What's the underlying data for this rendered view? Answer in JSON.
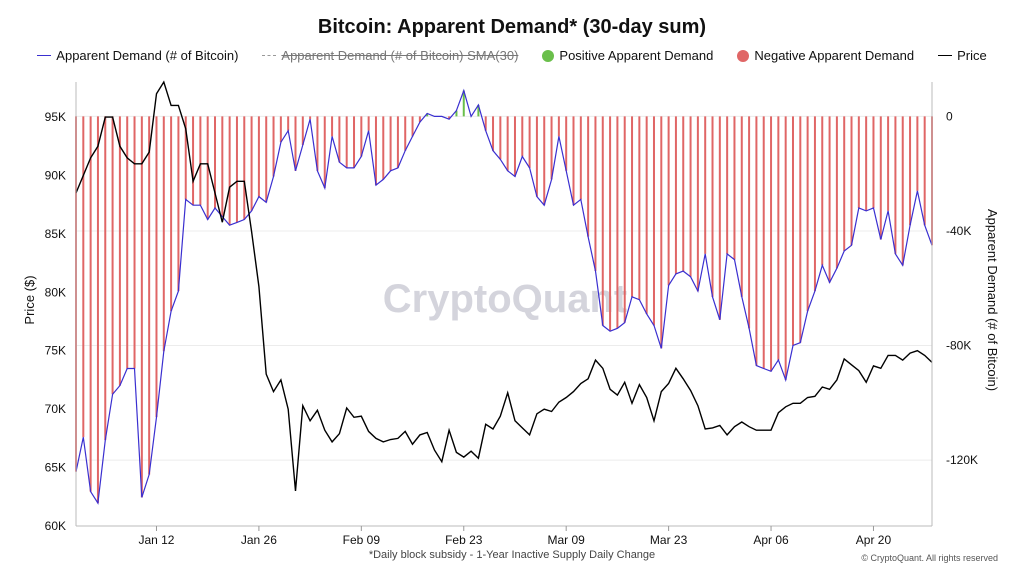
{
  "chart_data": {
    "type": "bar+line",
    "title": "Bitcoin: Apparent Demand* (30-day sum)",
    "x_ticks": [
      {
        "label": "Jan 12",
        "day": 11
      },
      {
        "label": "Jan 26",
        "day": 25
      },
      {
        "label": "Feb 09",
        "day": 39
      },
      {
        "label": "Feb 23",
        "day": 53
      },
      {
        "label": "Mar 09",
        "day": 67
      },
      {
        "label": "Mar 23",
        "day": 81
      },
      {
        "label": "Apr 06",
        "day": 95
      },
      {
        "label": "Apr 20",
        "day": 109
      }
    ],
    "legend": [
      {
        "label": "Apparent Demand (# of Bitcoin)",
        "kind": "line",
        "color": "#3a2fd0",
        "struck": false
      },
      {
        "label": "Apparent Demand (# of Bitcoin) SMA(30)",
        "kind": "line",
        "color": "#999999",
        "struck": true
      },
      {
        "label": "Positive Apparent Demand",
        "kind": "dot",
        "color": "#6abf4b",
        "struck": false
      },
      {
        "label": "Negative Apparent Demand",
        "kind": "dot",
        "color": "#e06666",
        "struck": false
      },
      {
        "label": "Price",
        "kind": "line",
        "color": "#000000",
        "struck": false
      }
    ],
    "left_axis": {
      "label": "Price ($)",
      "ticks": [
        "95K",
        "90K",
        "85K",
        "80K",
        "75K",
        "70K",
        "65K",
        "60K"
      ],
      "tick_values": [
        95000,
        90000,
        85000,
        80000,
        75000,
        70000,
        65000,
        60000
      ],
      "range": [
        60000,
        98000
      ]
    },
    "right_axis": {
      "label": "Apparent Demand (# of Bitcoin)",
      "ticks": [
        "0",
        "-40K",
        "-80K",
        "-120K"
      ],
      "tick_values": [
        0,
        -40000,
        -80000,
        -120000
      ],
      "range": [
        -143000,
        12000
      ]
    },
    "colors": {
      "positive": "#6abf4b",
      "negative": "#e06666",
      "demand_line": "#3a2fd0",
      "price": "#000000"
    },
    "series": [
      {
        "name": "Apparent Demand (# of Bitcoin)",
        "axis": "right",
        "values": [
          -124000,
          -112000,
          -131000,
          -135000,
          -113000,
          -97000,
          -94000,
          -88000,
          -88000,
          -133000,
          -125000,
          -105000,
          -82000,
          -68000,
          -61000,
          -29000,
          -31000,
          -31000,
          -36000,
          -32000,
          -35000,
          -38000,
          -37000,
          -36000,
          -33000,
          -28000,
          -30000,
          -21000,
          -9000,
          -5000,
          -19000,
          -10000,
          -1000,
          -19000,
          -25000,
          -7000,
          -16000,
          -18000,
          -18000,
          -14000,
          -5000,
          -24000,
          -22000,
          -19000,
          -18000,
          -12000,
          -7000,
          -2000,
          1000,
          0,
          0,
          -1000,
          2000,
          9000,
          0,
          4000,
          -5000,
          -12000,
          -15000,
          -19000,
          -21000,
          -14000,
          -18000,
          -28000,
          -31000,
          -22000,
          -7000,
          -19000,
          -31000,
          -29000,
          -42000,
          -54000,
          -73000,
          -75000,
          -74000,
          -72000,
          -63000,
          -64000,
          -69000,
          -73000,
          -81000,
          -59000,
          -55000,
          -54000,
          -56000,
          -61000,
          -48000,
          -63000,
          -71000,
          -48000,
          -50000,
          -63000,
          -74000,
          -87000,
          -88000,
          -89000,
          -85000,
          -92000,
          -80000,
          -79000,
          -68000,
          -61000,
          -52000,
          -58000,
          -53000,
          -47000,
          -45000,
          -32000,
          -33000,
          -32000,
          -43000,
          -33000,
          -48000,
          -52000,
          -38000,
          -26000,
          -38000,
          -45000
        ]
      },
      {
        "name": "Price",
        "axis": "left",
        "values": [
          88500,
          90000,
          91500,
          92500,
          95000,
          95000,
          92500,
          91500,
          91000,
          91000,
          92000,
          97000,
          98000,
          96000,
          96000,
          94000,
          89500,
          91000,
          91000,
          88500,
          86000,
          89000,
          89500,
          89500,
          85200,
          80500,
          73000,
          71500,
          72500,
          70000,
          63000,
          70300,
          69000,
          69900,
          68200,
          67200,
          67900,
          70100,
          69300,
          69400,
          68100,
          67500,
          67200,
          67400,
          67500,
          68100,
          67000,
          67800,
          68000,
          66500,
          65500,
          68200,
          66300,
          65900,
          66400,
          65800,
          68700,
          68300,
          69400,
          71400,
          69000,
          68400,
          67800,
          69600,
          70000,
          69800,
          70600,
          71000,
          71500,
          72200,
          72600,
          74200,
          73500,
          71700,
          71200,
          72300,
          70500,
          72100,
          71000,
          69000,
          71500,
          72200,
          73500,
          72600,
          71600,
          70300,
          68300,
          68400,
          68600,
          67800,
          68500,
          68900,
          68500,
          68200,
          68200,
          68200,
          69700,
          70200,
          70500,
          70500,
          71000,
          71100,
          71900,
          71700,
          72500,
          74300,
          73800,
          73300,
          72300,
          73700,
          73500,
          74600,
          74600,
          74200,
          74800,
          75000,
          74600,
          74000
        ]
      }
    ]
  },
  "watermark": "CryptoQuant",
  "footnote": "*Daily block subsidy - 1-Year Inactive Supply Daily Change",
  "copyright": "© CryptoQuant. All rights reserved"
}
